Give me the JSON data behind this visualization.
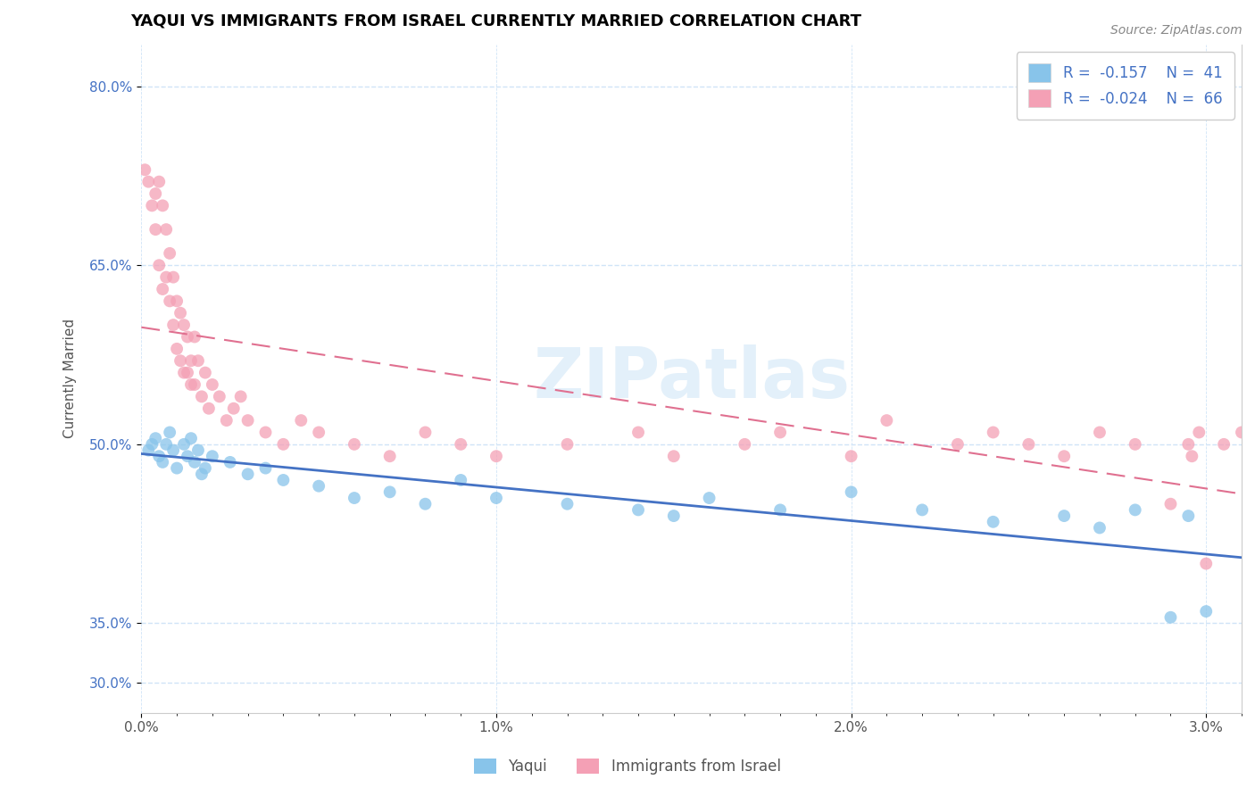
{
  "title": "YAQUI VS IMMIGRANTS FROM ISRAEL CURRENTLY MARRIED CORRELATION CHART",
  "source": "Source: ZipAtlas.com",
  "ylabel_ticks": [
    0.3,
    0.35,
    0.5,
    0.65,
    0.8
  ],
  "ylabel_labels": [
    "30.0%",
    "35.0%",
    "50.0%",
    "65.0%",
    "80.0%"
  ],
  "xlabel_labels": [
    "0.0%",
    "",
    "",
    "",
    "",
    "",
    "",
    "",
    "",
    "",
    "1.0%",
    "",
    "",
    "",
    "",
    "",
    "",
    "",
    "",
    "",
    "2.0%",
    "",
    "",
    "",
    "",
    "",
    "",
    "",
    "",
    "",
    "3.0%"
  ],
  "xlim": [
    0.0,
    0.031
  ],
  "ylim": [
    0.275,
    0.835
  ],
  "yaqui_color": "#88c4ea",
  "israel_color": "#f4a0b5",
  "trend_yaqui_color": "#4472c4",
  "trend_israel_color": "#e07090",
  "watermark": "ZIPatlas",
  "yaqui_x": [
    0.0002,
    0.0003,
    0.0004,
    0.0005,
    0.0006,
    0.0007,
    0.0008,
    0.0009,
    0.001,
    0.0012,
    0.0013,
    0.0014,
    0.0015,
    0.0016,
    0.0017,
    0.0018,
    0.002,
    0.0025,
    0.003,
    0.0035,
    0.004,
    0.005,
    0.006,
    0.007,
    0.008,
    0.009,
    0.01,
    0.012,
    0.014,
    0.015,
    0.016,
    0.018,
    0.02,
    0.022,
    0.024,
    0.026,
    0.027,
    0.028,
    0.029,
    0.0295,
    0.03
  ],
  "yaqui_y": [
    0.495,
    0.5,
    0.505,
    0.49,
    0.485,
    0.5,
    0.51,
    0.495,
    0.48,
    0.5,
    0.49,
    0.505,
    0.485,
    0.495,
    0.475,
    0.48,
    0.49,
    0.485,
    0.475,
    0.48,
    0.47,
    0.465,
    0.455,
    0.46,
    0.45,
    0.47,
    0.455,
    0.45,
    0.445,
    0.44,
    0.455,
    0.445,
    0.46,
    0.445,
    0.435,
    0.44,
    0.43,
    0.445,
    0.355,
    0.44,
    0.36
  ],
  "israel_x": [
    0.0001,
    0.0002,
    0.0003,
    0.0004,
    0.0004,
    0.0005,
    0.0005,
    0.0006,
    0.0006,
    0.0007,
    0.0007,
    0.0008,
    0.0008,
    0.0009,
    0.0009,
    0.001,
    0.001,
    0.0011,
    0.0011,
    0.0012,
    0.0012,
    0.0013,
    0.0013,
    0.0014,
    0.0014,
    0.0015,
    0.0015,
    0.0016,
    0.0017,
    0.0018,
    0.0019,
    0.002,
    0.0022,
    0.0024,
    0.0026,
    0.0028,
    0.003,
    0.0035,
    0.004,
    0.0045,
    0.005,
    0.006,
    0.007,
    0.008,
    0.009,
    0.01,
    0.012,
    0.014,
    0.015,
    0.017,
    0.018,
    0.02,
    0.021,
    0.023,
    0.024,
    0.025,
    0.026,
    0.027,
    0.028,
    0.029,
    0.0295,
    0.0296,
    0.0298,
    0.03,
    0.0305,
    0.031
  ],
  "israel_y": [
    0.73,
    0.72,
    0.7,
    0.71,
    0.68,
    0.72,
    0.65,
    0.7,
    0.63,
    0.68,
    0.64,
    0.66,
    0.62,
    0.64,
    0.6,
    0.62,
    0.58,
    0.61,
    0.57,
    0.6,
    0.56,
    0.59,
    0.56,
    0.57,
    0.55,
    0.59,
    0.55,
    0.57,
    0.54,
    0.56,
    0.53,
    0.55,
    0.54,
    0.52,
    0.53,
    0.54,
    0.52,
    0.51,
    0.5,
    0.52,
    0.51,
    0.5,
    0.49,
    0.51,
    0.5,
    0.49,
    0.5,
    0.51,
    0.49,
    0.5,
    0.51,
    0.49,
    0.52,
    0.5,
    0.51,
    0.5,
    0.49,
    0.51,
    0.5,
    0.45,
    0.5,
    0.49,
    0.51,
    0.4,
    0.5,
    0.51
  ],
  "legend_R1": "R =  -0.157",
  "legend_N1": "N =  41",
  "legend_R2": "R =  -0.024",
  "legend_N2": "N =  66",
  "bottom_label1": "Yaqui",
  "bottom_label2": "Immigrants from Israel",
  "ylabel": "Currently Married",
  "grid_color": "#d0e4f7",
  "title_fontsize": 13,
  "tick_fontsize": 11,
  "source_text": "Source: ZipAtlas.com"
}
